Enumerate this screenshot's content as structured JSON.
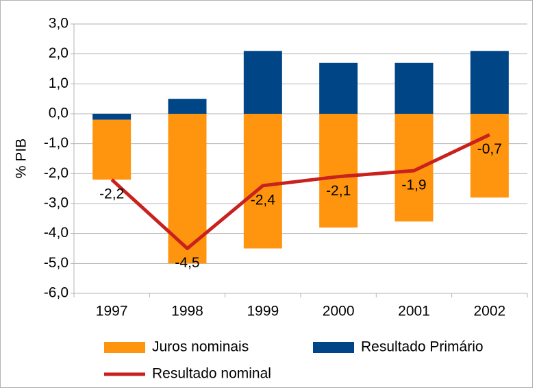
{
  "chart_data": {
    "type": "stacked-bar-line",
    "y_axis_label": "% PIB",
    "categories": [
      "1997",
      "1998",
      "1999",
      "2000",
      "2001",
      "2002"
    ],
    "series": [
      {
        "name": "Juros nominais",
        "type": "bar",
        "color": "#ff950e",
        "values": [
          -2.0,
          -5.0,
          -4.5,
          -3.8,
          -3.6,
          -2.8
        ]
      },
      {
        "name": "Resultado Primário",
        "type": "bar",
        "color": "#004586",
        "values": [
          -0.2,
          0.5,
          2.1,
          1.7,
          1.7,
          2.1
        ]
      },
      {
        "name": "Resultado nominal",
        "type": "line",
        "color": "#c9211e",
        "values": [
          -2.2,
          -4.5,
          -2.4,
          -2.1,
          -1.9,
          -0.7
        ],
        "value_labels": [
          "-2,2",
          "-4,5",
          "-2,4",
          "-2,1",
          "-1,9",
          "-0,7"
        ]
      }
    ],
    "ylim": [
      -6,
      3
    ],
    "yticks": [
      {
        "value": -6,
        "label": "-6,0"
      },
      {
        "value": -5,
        "label": "-5,0"
      },
      {
        "value": -4,
        "label": "-4,0"
      },
      {
        "value": -3,
        "label": "-3,0"
      },
      {
        "value": -2,
        "label": "-2,0"
      },
      {
        "value": -1,
        "label": "-1,0"
      },
      {
        "value": 0,
        "label": "0,0"
      },
      {
        "value": 1,
        "label": "1,0"
      },
      {
        "value": 2,
        "label": "2,0"
      },
      {
        "value": 3,
        "label": "3,0"
      }
    ],
    "grid": true
  }
}
